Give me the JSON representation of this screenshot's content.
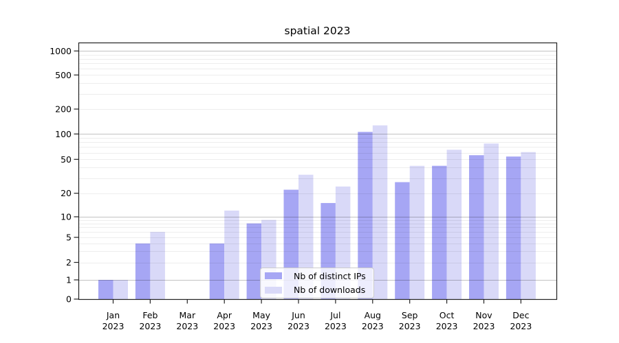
{
  "chart_data": {
    "type": "bar",
    "title": "spatial 2023",
    "categories": [
      "Jan",
      "Feb",
      "Mar",
      "Apr",
      "May",
      "Jun",
      "Jul",
      "Aug",
      "Sep",
      "Oct",
      "Nov",
      "Dec"
    ],
    "x_year_label": "2023",
    "series": [
      {
        "name": "Nb of distinct IPs",
        "color": "#a6a6f4",
        "values": [
          1,
          4,
          0,
          4,
          8,
          22,
          15,
          106,
          27,
          42,
          56,
          54
        ]
      },
      {
        "name": "Nb of downloads",
        "color": "#d9d9f8",
        "values": [
          1,
          6,
          0,
          12,
          9,
          33,
          24,
          127,
          42,
          65,
          77,
          61
        ]
      }
    ],
    "y_ticks": [
      0,
      1,
      2,
      5,
      10,
      20,
      50,
      100,
      200,
      500,
      1000
    ],
    "y_scale": "symlog",
    "ylim": [
      0,
      1300
    ],
    "grid": true,
    "legend_position": "lower center",
    "axis_color": "#222222",
    "major_grid_color": "rgba(0,0,0,0.24)",
    "minor_grid_color": "rgba(0,0,0,0.07)"
  }
}
